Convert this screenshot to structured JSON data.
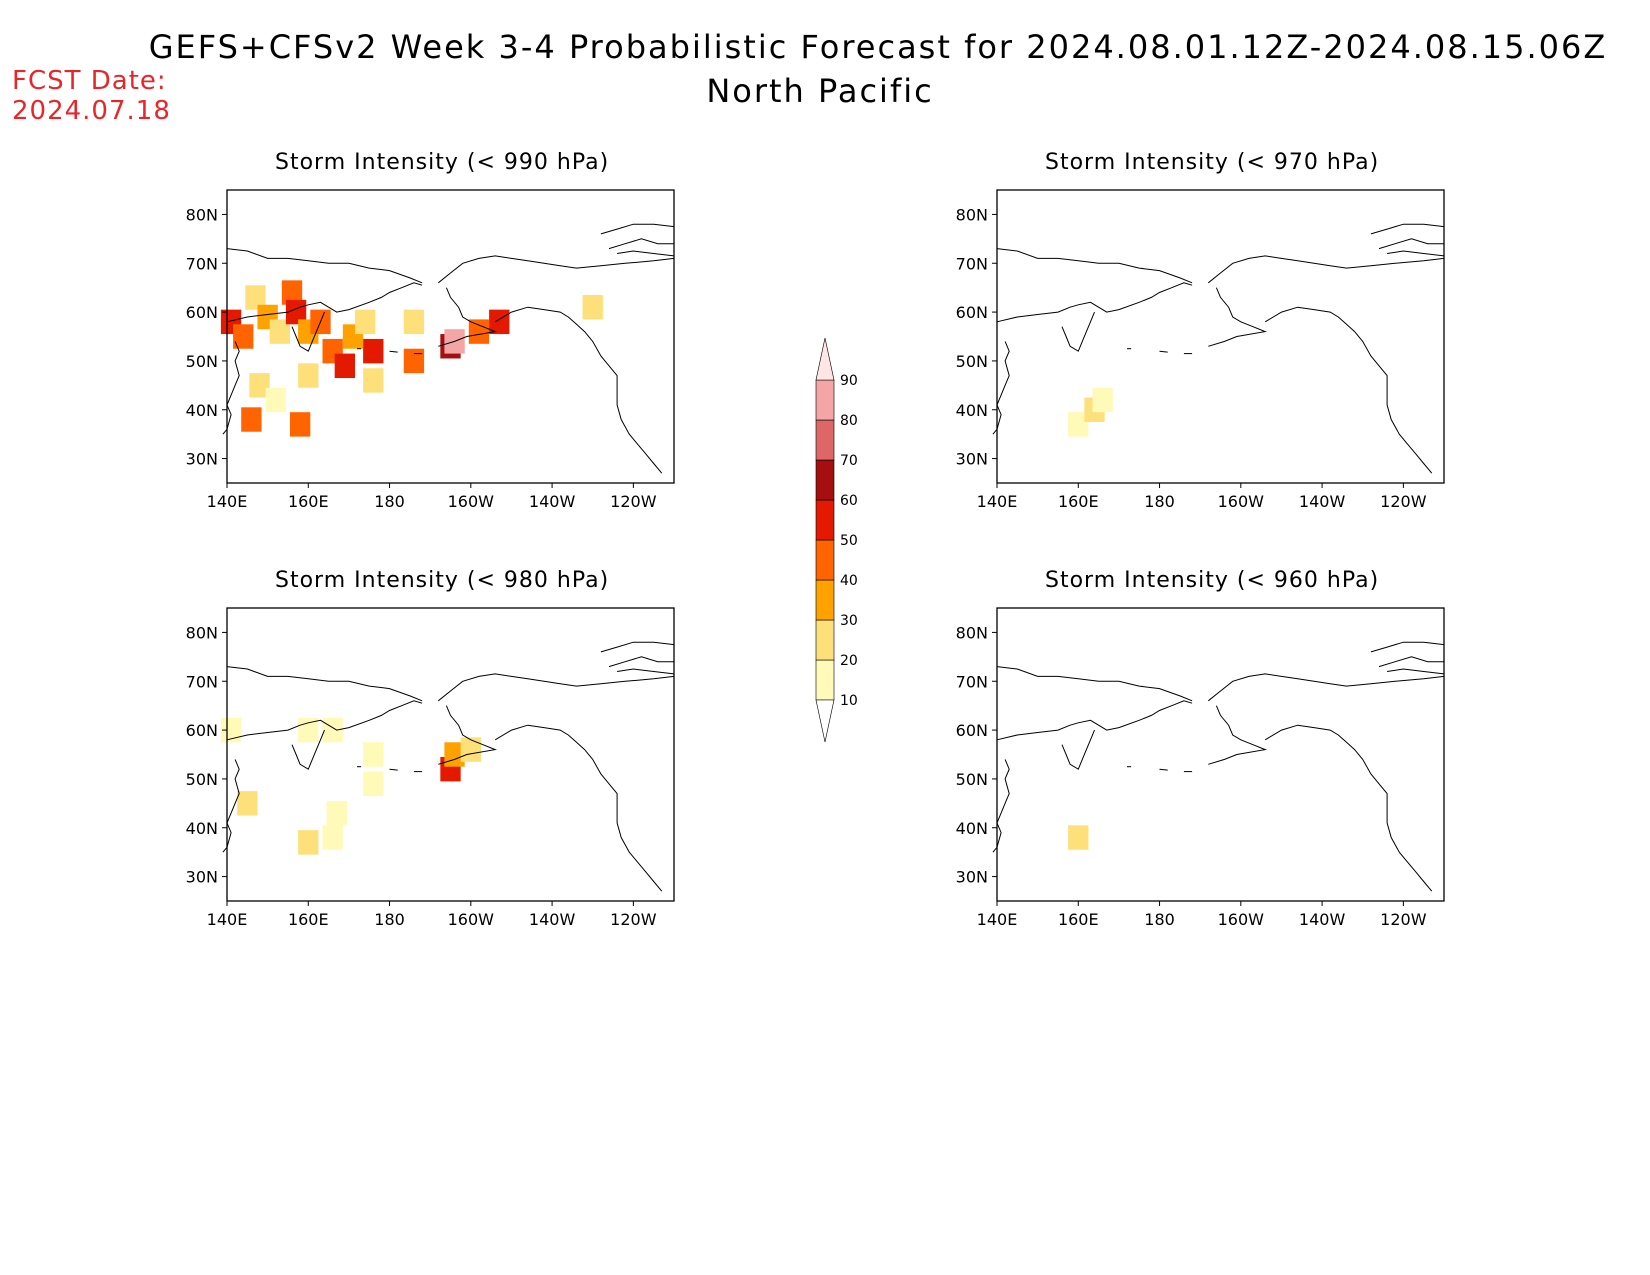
{
  "title": "GEFS+CFSv2 Week 3-4 Probabilistic Forecast for 2024.08.01.12Z-2024.08.15.06Z",
  "subtitle": "North Pacific",
  "fcst_label": "FCST Date:",
  "fcst_value": "2024.07.18",
  "lat_labels": [
    "80N",
    "70N",
    "60N",
    "50N",
    "40N",
    "30N"
  ],
  "lon_labels": [
    "140E",
    "160E",
    "180",
    "160W",
    "140W",
    "120W"
  ],
  "panels": [
    {
      "id": "p990",
      "title": "Storm Intensity (< 990 hPa)"
    },
    {
      "id": "p970",
      "title": "Storm Intensity (< 970 hPa)"
    },
    {
      "id": "p980",
      "title": "Storm Intensity (< 980 hPa)"
    },
    {
      "id": "p960",
      "title": "Storm Intensity (< 960 hPa)"
    }
  ],
  "colorbar": {
    "levels": [
      "10",
      "20",
      "30",
      "40",
      "50",
      "60",
      "70",
      "80",
      "90"
    ],
    "colors": [
      "#fffab8",
      "#fde07a",
      "#ffa200",
      "#ff6400",
      "#e41a00",
      "#a50f0f",
      "#dd6666",
      "#f4a6a6",
      "#ffe6e6"
    ]
  },
  "shading": {
    "p990": [
      {
        "lon": 141,
        "lat": 58,
        "c": "#e41a00"
      },
      {
        "lon": 144,
        "lat": 55,
        "c": "#ff6400"
      },
      {
        "lon": 147,
        "lat": 63,
        "c": "#fde07a"
      },
      {
        "lon": 150,
        "lat": 59,
        "c": "#ffa200"
      },
      {
        "lon": 153,
        "lat": 56,
        "c": "#fde07a"
      },
      {
        "lon": 156,
        "lat": 64,
        "c": "#ff6400"
      },
      {
        "lon": 157,
        "lat": 60,
        "c": "#e41a00"
      },
      {
        "lon": 160,
        "lat": 56,
        "c": "#ffa200"
      },
      {
        "lon": 163,
        "lat": 58,
        "c": "#ff6400"
      },
      {
        "lon": 166,
        "lat": 52,
        "c": "#ff6400"
      },
      {
        "lon": 169,
        "lat": 49,
        "c": "#e41a00"
      },
      {
        "lon": 171,
        "lat": 55,
        "c": "#ffa200"
      },
      {
        "lon": 174,
        "lat": 58,
        "c": "#fde07a"
      },
      {
        "lon": 148,
        "lat": 45,
        "c": "#fde07a"
      },
      {
        "lon": 152,
        "lat": 42,
        "c": "#fffab8"
      },
      {
        "lon": 146,
        "lat": 38,
        "c": "#ff6400"
      },
      {
        "lon": 158,
        "lat": 37,
        "c": "#ff6400"
      },
      {
        "lon": 160,
        "lat": 47,
        "c": "#fde07a"
      },
      {
        "lon": 176,
        "lat": 52,
        "c": "#e41a00"
      },
      {
        "lon": 186,
        "lat": 50,
        "c": "#ff6400"
      },
      {
        "lon": 195,
        "lat": 53,
        "c": "#a50f0f"
      },
      {
        "lon": 196,
        "lat": 54,
        "c": "#f4a6a6"
      },
      {
        "lon": 202,
        "lat": 56,
        "c": "#ff6400"
      },
      {
        "lon": 207,
        "lat": 58,
        "c": "#e41a00"
      },
      {
        "lon": 186,
        "lat": 58,
        "c": "#fde07a"
      },
      {
        "lon": 176,
        "lat": 46,
        "c": "#fde07a"
      },
      {
        "lon": 230,
        "lat": 61,
        "c": "#fde07a"
      }
    ],
    "p970": [
      {
        "lon": 160,
        "lat": 37,
        "c": "#fffab8"
      },
      {
        "lon": 164,
        "lat": 40,
        "c": "#fde07a"
      },
      {
        "lon": 166,
        "lat": 42,
        "c": "#fffab8"
      }
    ],
    "p980": [
      {
        "lon": 141,
        "lat": 60,
        "c": "#fffab8"
      },
      {
        "lon": 145,
        "lat": 45,
        "c": "#fde07a"
      },
      {
        "lon": 160,
        "lat": 37,
        "c": "#fde07a"
      },
      {
        "lon": 166,
        "lat": 38,
        "c": "#fffab8"
      },
      {
        "lon": 167,
        "lat": 43,
        "c": "#fffab8"
      },
      {
        "lon": 160,
        "lat": 60,
        "c": "#fffab8"
      },
      {
        "lon": 166,
        "lat": 60,
        "c": "#fffab8"
      },
      {
        "lon": 176,
        "lat": 55,
        "c": "#fffab8"
      },
      {
        "lon": 176,
        "lat": 49,
        "c": "#fffab8"
      },
      {
        "lon": 195,
        "lat": 52,
        "c": "#e41a00"
      },
      {
        "lon": 196,
        "lat": 55,
        "c": "#ffa200"
      },
      {
        "lon": 200,
        "lat": 56,
        "c": "#fde07a"
      }
    ],
    "p960": [
      {
        "lon": 160,
        "lat": 38,
        "c": "#fde07a"
      }
    ]
  }
}
